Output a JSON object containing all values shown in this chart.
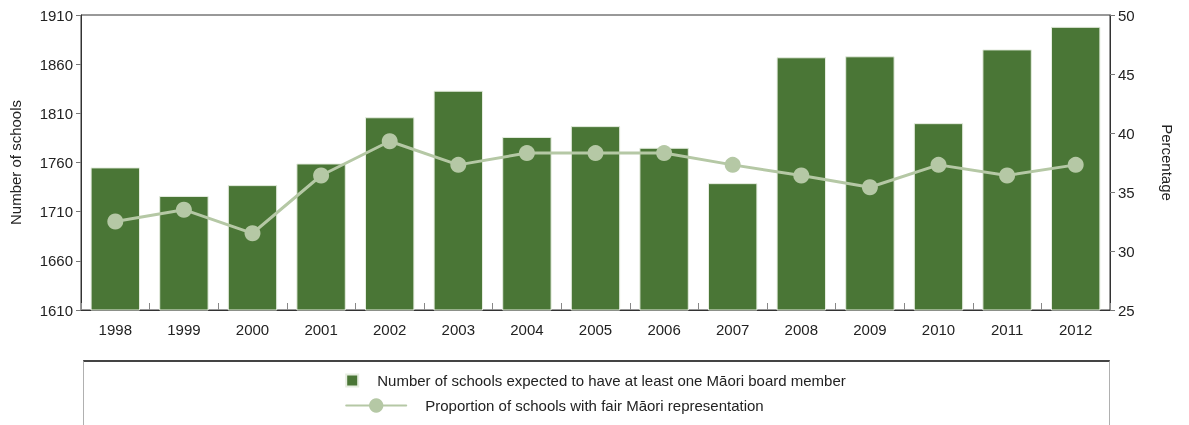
{
  "chart_data": {
    "type": "bar",
    "categories": [
      "1998",
      "1999",
      "2000",
      "2001",
      "2002",
      "2003",
      "2004",
      "2005",
      "2006",
      "2007",
      "2008",
      "2009",
      "2010",
      "2011",
      "2012"
    ],
    "series": [
      {
        "name": "Number of schools expected to have at least one Māori board member",
        "color": "#4a7636",
        "values": [
          1755,
          1726,
          1737,
          1759,
          1806,
          1833,
          1786,
          1797,
          1775,
          1739,
          1867,
          1868,
          1800,
          1875,
          1898
        ]
      },
      {
        "name": "Proportion of schools with fair Māori representation",
        "type": "line",
        "axis": "y2",
        "marker": "circle",
        "color": "#b5c8a5",
        "values": [
          32.5,
          33.5,
          31.5,
          36.4,
          39.3,
          37.3,
          38.3,
          38.3,
          38.3,
          37.3,
          36.4,
          35.4,
          37.3,
          36.4,
          37.3
        ]
      }
    ],
    "ylabel": "Number of schools",
    "y2label": "Percentage",
    "ylim": [
      1610,
      1910
    ],
    "yticks": [
      1610,
      1660,
      1710,
      1760,
      1810,
      1860,
      1910
    ],
    "y2lim": [
      25,
      50
    ],
    "y2ticks": [
      25,
      30,
      35,
      40,
      45,
      50
    ],
    "legend": "bottom"
  }
}
